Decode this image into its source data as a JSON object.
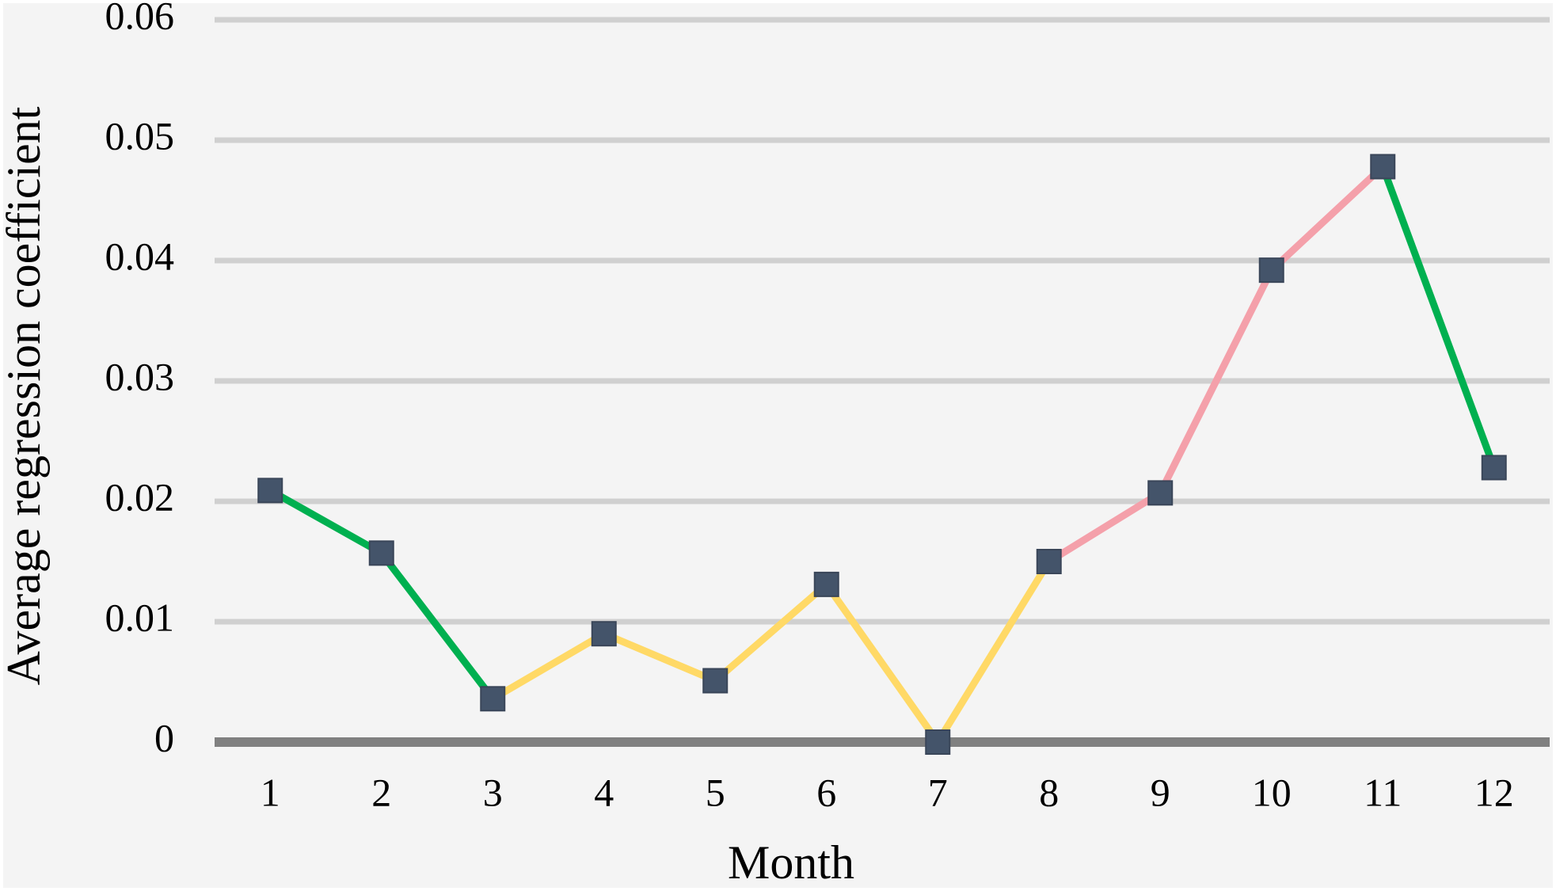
{
  "chart_data": {
    "type": "line",
    "x_label": "Month",
    "y_label": "Average regression coefficient",
    "categories": [
      "1",
      "2",
      "3",
      "4",
      "5",
      "6",
      "7",
      "8",
      "9",
      "10",
      "11",
      "12"
    ],
    "series": [
      {
        "color": "#44546a",
        "values": [
          0.0209,
          0.0157,
          0.0036,
          0.009,
          0.0051,
          0.0131,
          0.0,
          0.015,
          0.0207,
          0.0392,
          0.0478,
          0.0228
        ]
      }
    ],
    "segment_colors": [
      "#00b050",
      "#00b050",
      "#ffd966",
      "#ffd966",
      "#ffd966",
      "#ffd966",
      "#ffd966",
      "#f4a0aa",
      "#f4a0aa",
      "#f4a0aa",
      "#00b050"
    ],
    "ylim": [
      0,
      0.06
    ],
    "yticks": [
      0,
      0.01,
      0.02,
      0.03,
      0.04,
      0.05,
      0.06
    ],
    "grid": true
  }
}
